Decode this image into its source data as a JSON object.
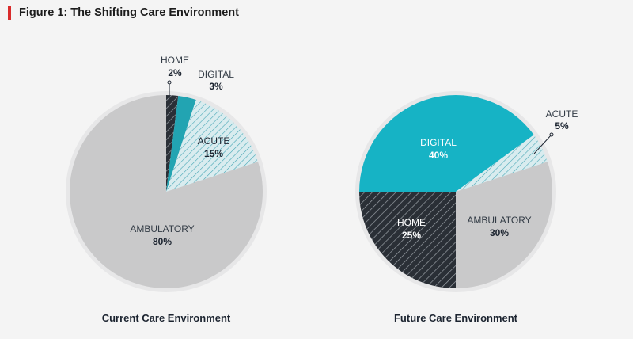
{
  "figure": {
    "title": "Figure 1: The Shifting Care Environment"
  },
  "colors": {
    "accent": "#d92b2b",
    "ambulatory": "#c9c9ca",
    "digital": "#16b3c5",
    "digital_dark": "#22a4b2",
    "home": "#2a2f36",
    "acute_bg": "#d9ecef",
    "acute_stripe": "#49a7b6",
    "halo": "#e7e7e8"
  },
  "chart_data": [
    {
      "type": "pie",
      "title": "Current Care Environment",
      "slices": [
        {
          "label": "HOME",
          "value": 2,
          "value_label": "2%"
        },
        {
          "label": "DIGITAL",
          "value": 3,
          "value_label": "3%"
        },
        {
          "label": "ACUTE",
          "value": 15,
          "value_label": "15%"
        },
        {
          "label": "AMBULATORY",
          "value": 80,
          "value_label": "80%"
        }
      ]
    },
    {
      "type": "pie",
      "title": "Future Care Environment",
      "slices": [
        {
          "label": "DIGITAL",
          "value": 40,
          "value_label": "40%"
        },
        {
          "label": "ACUTE",
          "value": 5,
          "value_label": "5%"
        },
        {
          "label": "AMBULATORY",
          "value": 30,
          "value_label": "30%"
        },
        {
          "label": "HOME",
          "value": 25,
          "value_label": "25%"
        }
      ]
    }
  ]
}
